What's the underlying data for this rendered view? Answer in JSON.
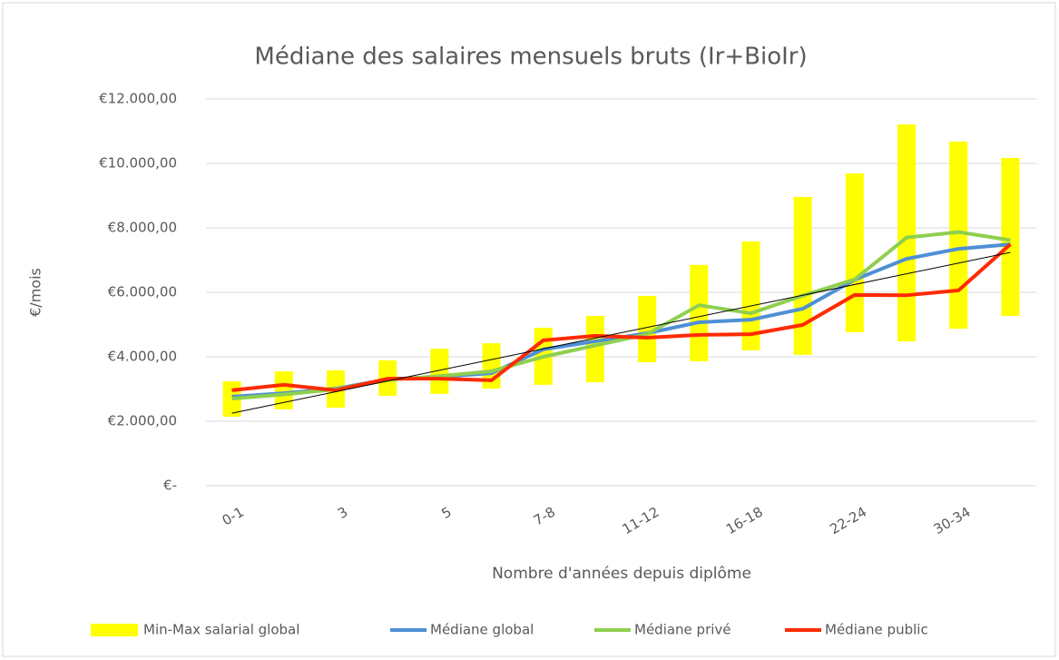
{
  "chart_data": {
    "type": "line",
    "title": "Médiane des salaires mensuels bruts (Ir+BioIr)",
    "x_label": "Nombre d'années depuis diplôme",
    "y_label": "€/mois",
    "categories": [
      "0-1",
      null,
      "3",
      null,
      "5",
      null,
      "7-8",
      null,
      "11-12",
      null,
      "16-18",
      null,
      "22-24",
      null,
      "30-34",
      null
    ],
    "ylim": [
      0,
      12000
    ],
    "yticks": [
      {
        "value": 0,
        "label": "€-"
      },
      {
        "value": 2000,
        "label": "€2.000,00"
      },
      {
        "value": 4000,
        "label": "€4.000,00"
      },
      {
        "value": 6000,
        "label": "€6.000,00"
      },
      {
        "value": 8000,
        "label": "€8.000,00"
      },
      {
        "value": 10000,
        "label": "€10.000,00"
      },
      {
        "value": 12000,
        "label": "€12.000,00"
      }
    ],
    "grid": true,
    "legend": "bottom",
    "range_series": {
      "name": "Min-Max salarial global",
      "color": "#ffff00",
      "low": [
        2140,
        2370,
        2420,
        2790,
        2850,
        3010,
        3130,
        3210,
        3830,
        3860,
        4200,
        4060,
        4760,
        4480,
        4870,
        5270
      ],
      "high": [
        3240,
        3550,
        3580,
        3890,
        4250,
        4420,
        4900,
        5270,
        5890,
        6850,
        7580,
        8960,
        9690,
        11210,
        10680,
        10170
      ]
    },
    "series": [
      {
        "name": "Médiane global",
        "color": "#4f8fd6",
        "values": [
          2760,
          2870,
          3010,
          3300,
          3380,
          3490,
          4230,
          4480,
          4730,
          5070,
          5150,
          5490,
          6390,
          7040,
          7350,
          7490
        ]
      },
      {
        "name": "Médiane privé",
        "color": "#8fcf4f",
        "values": [
          2700,
          2830,
          2990,
          3280,
          3400,
          3550,
          4000,
          4350,
          4700,
          5600,
          5350,
          5900,
          6400,
          7700,
          7870,
          7620
        ]
      },
      {
        "name": "Médiane public",
        "color": "#ff2a00",
        "values": [
          2960,
          3130,
          2960,
          3320,
          3320,
          3270,
          4510,
          4650,
          4590,
          4680,
          4700,
          4990,
          5920,
          5910,
          6060,
          7490
        ]
      }
    ],
    "trendline": {
      "color": "#000000",
      "start": 2250,
      "end": 7240
    }
  }
}
